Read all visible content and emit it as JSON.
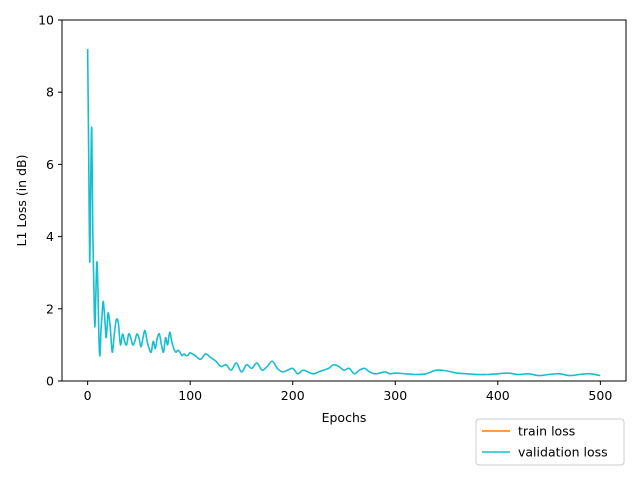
{
  "chart_data": {
    "type": "line",
    "title": "",
    "xlabel": "Epochs",
    "ylabel": "L1 Loss (in dB)",
    "xlim": [
      -25,
      525
    ],
    "ylim": [
      0,
      10
    ],
    "xticks": [
      0,
      100,
      200,
      300,
      400,
      500
    ],
    "yticks": [
      0,
      2,
      4,
      6,
      8,
      10
    ],
    "grid": false,
    "legend": "below-right, outside axes",
    "series": [
      {
        "name": "train loss",
        "color": "#ff7f0e",
        "x": [],
        "y": []
      },
      {
        "name": "validation loss",
        "color": "#17becf",
        "x": [
          0,
          1,
          2,
          3,
          4,
          5,
          6,
          7,
          8,
          9,
          10,
          11,
          12,
          13,
          14,
          15,
          16,
          17,
          18,
          19,
          20,
          22,
          24,
          26,
          28,
          30,
          32,
          34,
          36,
          38,
          40,
          42,
          44,
          46,
          48,
          50,
          52,
          54,
          56,
          58,
          60,
          62,
          64,
          66,
          68,
          70,
          72,
          74,
          76,
          78,
          80,
          82,
          84,
          86,
          88,
          90,
          92,
          94,
          96,
          98,
          100,
          105,
          110,
          115,
          120,
          125,
          130,
          135,
          140,
          145,
          150,
          155,
          160,
          165,
          170,
          175,
          180,
          185,
          190,
          195,
          200,
          205,
          210,
          215,
          220,
          225,
          230,
          235,
          240,
          245,
          250,
          255,
          260,
          265,
          270,
          275,
          280,
          285,
          290,
          295,
          300,
          310,
          320,
          330,
          340,
          350,
          360,
          370,
          380,
          390,
          400,
          410,
          420,
          430,
          440,
          450,
          460,
          470,
          480,
          490,
          500
        ],
        "y": [
          9.2,
          6.4,
          3.3,
          5.5,
          7.0,
          4.2,
          2.7,
          1.5,
          2.4,
          3.3,
          2.6,
          1.2,
          0.7,
          1.4,
          1.8,
          2.2,
          2.0,
          1.6,
          1.2,
          1.5,
          1.9,
          1.5,
          0.8,
          1.3,
          1.7,
          1.6,
          1.0,
          1.3,
          1.1,
          1.0,
          1.3,
          1.2,
          1.0,
          1.1,
          1.3,
          1.2,
          0.95,
          1.2,
          1.4,
          1.1,
          0.9,
          0.8,
          1.1,
          0.9,
          1.2,
          1.3,
          1.0,
          0.8,
          1.2,
          1.0,
          1.35,
          1.1,
          0.9,
          0.8,
          0.85,
          0.8,
          0.7,
          0.75,
          0.7,
          0.72,
          0.78,
          0.7,
          0.6,
          0.75,
          0.65,
          0.55,
          0.4,
          0.45,
          0.3,
          0.5,
          0.25,
          0.45,
          0.35,
          0.5,
          0.3,
          0.4,
          0.55,
          0.35,
          0.25,
          0.3,
          0.35,
          0.2,
          0.3,
          0.25,
          0.2,
          0.25,
          0.3,
          0.35,
          0.45,
          0.4,
          0.3,
          0.35,
          0.2,
          0.3,
          0.35,
          0.25,
          0.2,
          0.22,
          0.25,
          0.2,
          0.22,
          0.2,
          0.18,
          0.2,
          0.3,
          0.28,
          0.22,
          0.2,
          0.18,
          0.18,
          0.2,
          0.22,
          0.18,
          0.2,
          0.15,
          0.18,
          0.2,
          0.15,
          0.18,
          0.2,
          0.15
        ]
      }
    ]
  }
}
